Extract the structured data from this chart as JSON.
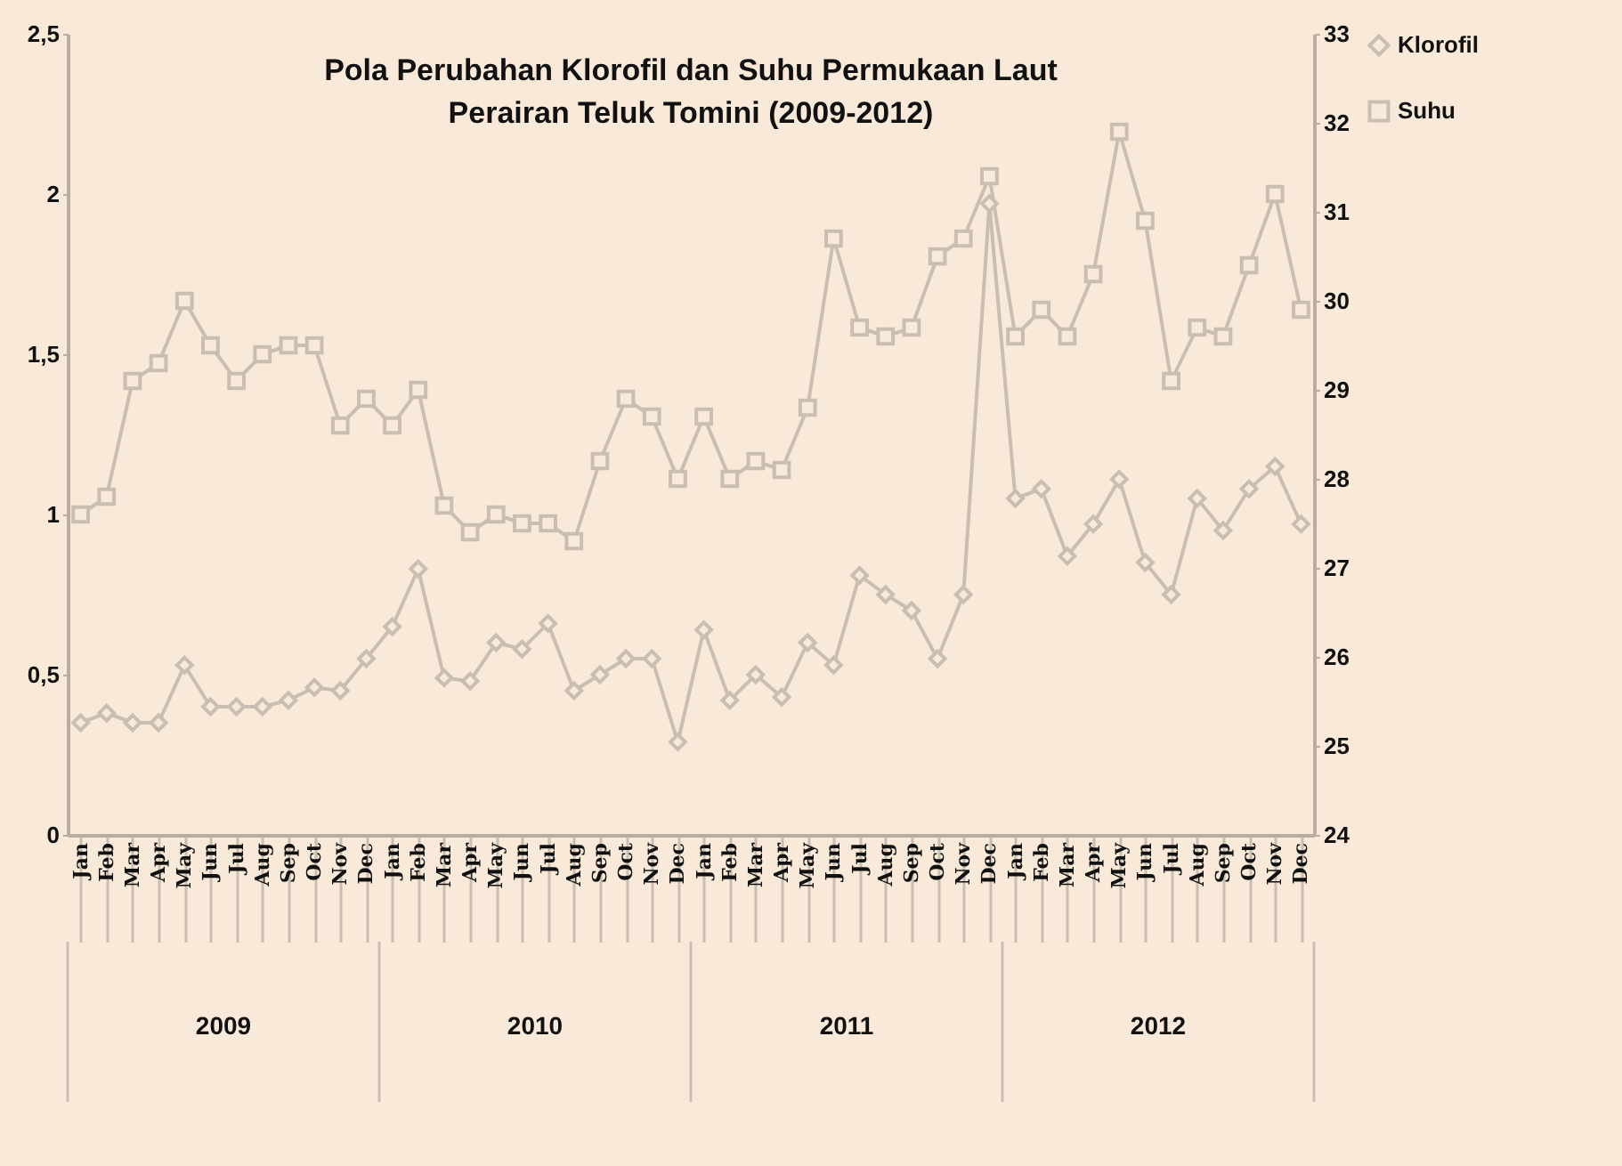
{
  "chart_data": {
    "type": "line",
    "title": [
      "Pola Perubahan Klorofil  dan Suhu Permukaan Laut",
      "Perairan Teluk Tomini (2009-2012)"
    ],
    "categories": [
      "Jan",
      "Feb",
      "Mar",
      "Apr",
      "May",
      "Jun",
      "Jul",
      "Aug",
      "Sep",
      "Oct",
      "Nov",
      "Dec",
      "Jan",
      "Feb",
      "Mar",
      "Apr",
      "May",
      "Jun",
      "Jul",
      "Aug",
      "Sep",
      "Oct",
      "Nov",
      "Dec",
      "Jan",
      "Feb",
      "Mar",
      "Apr",
      "May",
      "Jun",
      "Jul",
      "Aug",
      "Sep",
      "Oct",
      "Nov",
      "Dec",
      "Jan",
      "Feb",
      "Mar",
      "Apr",
      "May",
      "Jun",
      "Jul",
      "Aug",
      "Sep",
      "Oct",
      "Nov",
      "Dec"
    ],
    "series": [
      {
        "name": "Klorofil",
        "color": "#c9beb2",
        "marker": "diamond",
        "values": [
          0.35,
          0.38,
          0.35,
          0.35,
          0.53,
          0.4,
          0.4,
          0.4,
          0.42,
          0.46,
          0.45,
          0.55,
          0.65,
          0.83,
          0.49,
          0.48,
          0.6,
          0.58,
          0.66,
          0.45,
          0.5,
          0.55,
          0.55,
          0.29,
          0.64,
          0.42,
          0.5,
          0.43,
          0.6,
          0.53,
          0.81,
          0.75,
          0.7,
          0.55,
          0.75,
          1.97,
          1.05,
          1.08,
          0.87,
          0.97,
          1.11,
          0.85,
          0.75,
          1.05,
          0.95,
          1.08,
          1.15,
          0.97
        ]
      },
      {
        "name": "Suhu",
        "color": "#c9beb2",
        "marker": "square",
        "axis": "y2",
        "values": [
          27.6,
          27.8,
          29.1,
          29.3,
          30.0,
          29.5,
          29.1,
          29.4,
          29.5,
          29.5,
          28.6,
          28.9,
          28.6,
          29.0,
          27.7,
          27.4,
          27.6,
          27.5,
          27.5,
          27.3,
          28.2,
          28.9,
          28.7,
          28.0,
          28.7,
          28.0,
          28.2,
          28.1,
          28.8,
          30.7,
          29.7,
          29.6,
          29.7,
          30.5,
          30.7,
          31.4,
          29.6,
          29.9,
          29.6,
          30.3,
          31.9,
          30.9,
          29.1,
          29.7,
          29.6,
          30.4,
          31.2,
          29.9
        ]
      }
    ],
    "ylim": [
      0,
      2.5
    ],
    "yticks": [
      0,
      {
        "value": 0.5,
        "label": "0,5"
      },
      1,
      {
        "value": 1.5,
        "label": "1,5"
      },
      2,
      {
        "value": 2.5,
        "label": "2,5"
      }
    ],
    "y2lim": [
      24,
      33
    ],
    "y2ticks": [
      24,
      25,
      26,
      27,
      28,
      29,
      30,
      31,
      32,
      33
    ],
    "annotations": [
      "2009",
      "2010",
      "2011",
      "2012"
    ],
    "legend": "right"
  }
}
